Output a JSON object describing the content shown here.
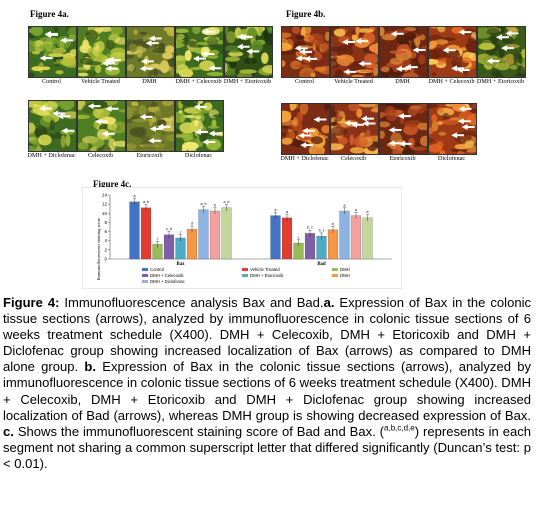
{
  "figure_4a": {
    "title": "Figure 4a.",
    "labels": [
      "Control",
      "Vehicle Treated",
      "DMH",
      "DMH + Celecoxib",
      "DMH + Etoricoxib",
      "DMH + Diclofenac",
      "Celecoxib",
      "Etoricoxib",
      "Diclofenac"
    ]
  },
  "figure_4b": {
    "title": "Figure 4b.",
    "labels": [
      "Control",
      "Vehicle Treated",
      "DMH",
      "DMH + Celecoxib",
      "DMH + Etoricoxib",
      "DMH + Diclofenac",
      "Celecoxib",
      "Etoricoxib",
      "Diclofenac"
    ]
  },
  "figure_4c": {
    "title": "Figure 4c."
  },
  "chart_data": {
    "type": "bar",
    "categories": [
      "Bax",
      "Bad"
    ],
    "ylabel": "Immunofluorescent staining score",
    "ylim": [
      0,
      14
    ],
    "yticks": [
      0,
      2,
      4,
      6,
      8,
      10,
      12,
      14
    ],
    "grid": false,
    "legend_position": "bottom",
    "series": [
      {
        "name": "Control",
        "color": "#4472c4",
        "values": [
          12.5,
          9.5
        ],
        "labels": [
          "a",
          "a"
        ]
      },
      {
        "name": "Vehicle Treated",
        "color": "#e03c31",
        "values": [
          11.2,
          9.0
        ],
        "labels": [
          "a, b",
          "a"
        ]
      },
      {
        "name": "DMH",
        "color": "#9bbb59",
        "values": [
          3.2,
          3.5
        ],
        "labels": [
          "c",
          "c"
        ]
      },
      {
        "name": "DMH + Celecoxib",
        "color": "#7f5fa8",
        "values": [
          5.3,
          5.6
        ],
        "labels": [
          "c, d",
          "b, c"
        ]
      },
      {
        "name": "DMH + Etoricoxib",
        "color": "#4bacc6",
        "values": [
          4.6,
          5.0
        ],
        "labels": [
          "c",
          "b, c"
        ]
      },
      {
        "name": "DMH",
        "color": "#f79646",
        "values": [
          6.5,
          6.4
        ],
        "labels": [
          "d",
          "b"
        ]
      },
      {
        "name": "DMH + Diclofenac",
        "color": "#8db3e2",
        "values": [
          10.8,
          10.5
        ],
        "labels": [
          "a, b",
          "a"
        ]
      },
      {
        "name": "",
        "color": "#f2a1a1",
        "values": [
          10.5,
          9.5
        ],
        "labels": [
          "b",
          "a"
        ]
      },
      {
        "name": "",
        "color": "#c3d69b",
        "values": [
          11.2,
          9.0
        ],
        "labels": [
          "a, b",
          "a"
        ]
      }
    ]
  },
  "caption": {
    "label": "Figure 4:",
    "text_1": " Immunofluorescence analysis Bax and Bad.",
    "a_label": "a.",
    "text_2": " Expression of Bax in the colonic tissue sections (arrows), analyzed by immunofluorescence in colonic tissue sections of 6 weeks treatment schedule (X400). DMH + Celecoxib, DMH + Etoricoxib and DMH + Diclofenac group showing increased localization of Bax (arrows) as compared to DMH alone group. ",
    "b_label": "b.",
    "text_3": " Expression of Bax in the colonic tissue sections (arrows), analyzed by immunofluorescence in colonic tissue sections of 6 weeks treatment schedule (X400). DMH + Celecoxib, DMH + Etoricoxib and DMH + Diclofenac group showing increased localization of Bad (arrows), whereas DMH group is showing decreased expression of Bax. ",
    "c_label": "c.",
    "text_4": " Shows the immunofluorescent staining score of Bad and Bax. (",
    "superscript": "a,b,c,d,e",
    "text_5": ") represents in each segment not sharing a common superscript letter that differed significantly (Duncan’s test: p < 0.01)."
  }
}
